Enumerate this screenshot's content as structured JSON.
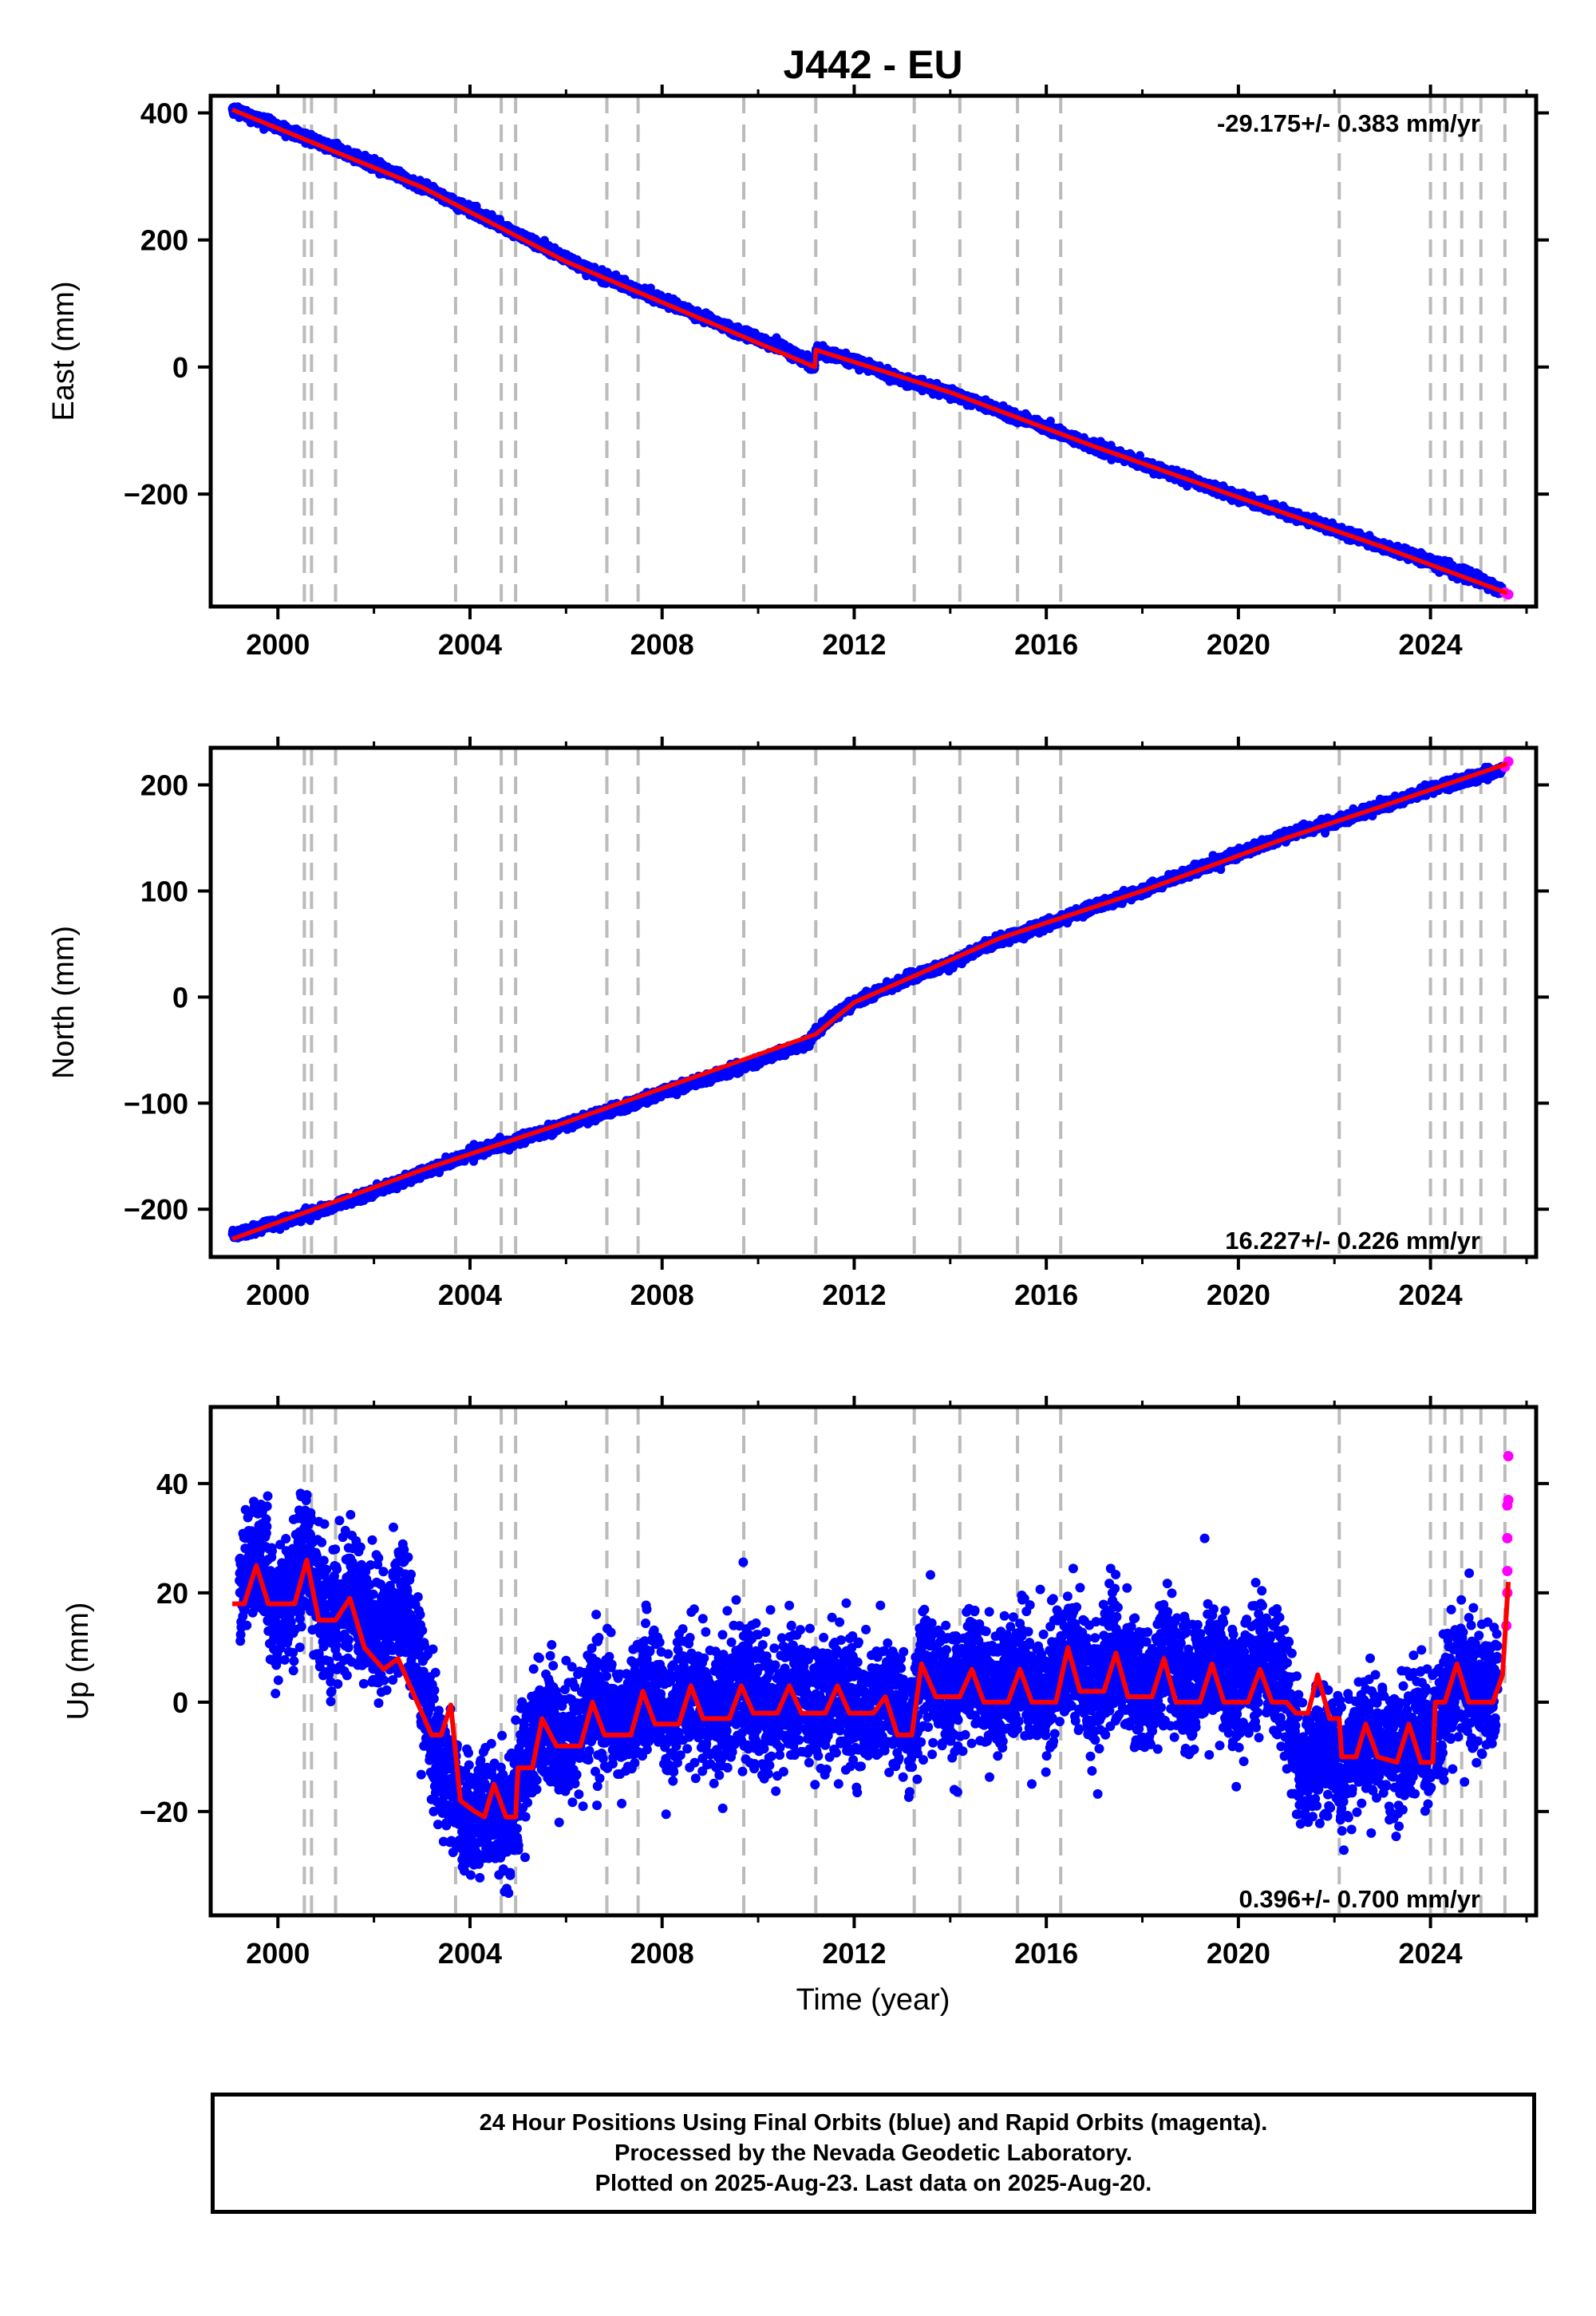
{
  "title": "J442 - EU",
  "xlabel": "Time (year)",
  "colors": {
    "final": "#0000ff",
    "rapid": "#ff00ff",
    "model": "#ff0000",
    "event_line": "#bbbbbb"
  },
  "caption": [
    "24 Hour Positions Using Final Orbits (blue) and Rapid Orbits (magenta).",
    "Processed by the Nevada Geodetic Laboratory.",
    "Plotted on 2025-Aug-23. Last data on 2025-Aug-20."
  ],
  "chart_data": [
    {
      "type": "scatter",
      "ylabel": "East (mm)",
      "rate_label": "-29.175+/- 0.383 mm/yr",
      "xlim": [
        1998.6,
        2026.2
      ],
      "ylim": [
        -377,
        427
      ],
      "xticks": [
        "2000",
        "2004",
        "2008",
        "2012",
        "2016",
        "2020",
        "2024"
      ],
      "yticks": [
        "400",
        "200",
        "0",
        "−200"
      ],
      "event_lines": [
        2000.55,
        2000.7,
        2001.2,
        2003.7,
        2004.65,
        2004.95,
        2006.85,
        2007.5,
        2009.7,
        2011.2,
        2013.25,
        2014.2,
        2015.4,
        2016.3,
        2022.1,
        2024.0,
        2024.3,
        2024.65,
        2025.05,
        2025.55
      ],
      "trend_points": [
        [
          1999.05,
          405
        ],
        [
          2003.0,
          283
        ],
        [
          2006.0,
          166
        ],
        [
          2011.18,
          0
        ],
        [
          2011.2,
          27
        ],
        [
          2014.0,
          -40
        ],
        [
          2017.0,
          -125
        ],
        [
          2020.0,
          -205
        ],
        [
          2023.0,
          -283
        ],
        [
          2025.6,
          -356
        ]
      ],
      "series": [
        {
          "name": "Final Orbits",
          "points": [
            [
              1999.05,
              406
            ],
            [
              2000.0,
              378
            ],
            [
              2001.0,
              349
            ],
            [
              2002.0,
              318
            ],
            [
              2003.0,
              284
            ],
            [
              2004.0,
              248
            ],
            [
              2004.7,
              220
            ],
            [
              2005.5,
              190
            ],
            [
              2006.5,
              152
            ],
            [
              2007.5,
              120
            ],
            [
              2008.5,
              90
            ],
            [
              2009.5,
              58
            ],
            [
              2010.5,
              30
            ],
            [
              2011.18,
              1
            ],
            [
              2011.2,
              26
            ],
            [
              2012.0,
              10
            ],
            [
              2013.0,
              -20
            ],
            [
              2014.0,
              -40
            ],
            [
              2015.0,
              -68
            ],
            [
              2016.0,
              -96
            ],
            [
              2017.0,
              -126
            ],
            [
              2018.0,
              -152
            ],
            [
              2019.0,
              -178
            ],
            [
              2020.0,
              -204
            ],
            [
              2021.0,
              -230
            ],
            [
              2022.0,
              -255
            ],
            [
              2023.0,
              -283
            ],
            [
              2024.0,
              -306
            ],
            [
              2025.0,
              -333
            ],
            [
              2025.5,
              -352
            ]
          ]
        },
        {
          "name": "Rapid Orbits",
          "points": [
            [
              2025.55,
              -355
            ],
            [
              2025.62,
              -358
            ]
          ]
        }
      ]
    },
    {
      "type": "scatter",
      "ylabel": "North (mm)",
      "rate_label": "16.227+/- 0.226 mm/yr",
      "xlim": [
        1998.6,
        2026.2
      ],
      "ylim": [
        -245,
        235
      ],
      "xticks": [
        "2000",
        "2004",
        "2008",
        "2012",
        "2016",
        "2020",
        "2024"
      ],
      "yticks": [
        "200",
        "100",
        "0",
        "−100",
        "−200"
      ],
      "event_lines": [
        2000.55,
        2000.7,
        2001.2,
        2003.7,
        2004.65,
        2004.95,
        2006.85,
        2007.5,
        2009.7,
        2011.2,
        2013.25,
        2014.2,
        2015.4,
        2016.3,
        2022.1,
        2024.0,
        2024.3,
        2024.65,
        2025.05,
        2025.55
      ],
      "trend_points": [
        [
          1999.05,
          -228
        ],
        [
          2003.0,
          -163
        ],
        [
          2006.0,
          -118
        ],
        [
          2011.2,
          -35
        ],
        [
          2012.0,
          -5
        ],
        [
          2015.0,
          55
        ],
        [
          2018.0,
          100
        ],
        [
          2021.0,
          150
        ],
        [
          2023.0,
          180
        ],
        [
          2025.6,
          220
        ]
      ],
      "series": [
        {
          "name": "Final Orbits",
          "points": [
            [
              1999.05,
              -225
            ],
            [
              2000.0,
              -212
            ],
            [
              2001.0,
              -200
            ],
            [
              2002.0,
              -184
            ],
            [
              2003.0,
              -166
            ],
            [
              2004.0,
              -148
            ],
            [
              2005.0,
              -135
            ],
            [
              2006.0,
              -120
            ],
            [
              2007.0,
              -106
            ],
            [
              2008.0,
              -90
            ],
            [
              2009.0,
              -76
            ],
            [
              2010.0,
              -60
            ],
            [
              2011.0,
              -44
            ],
            [
              2011.5,
              -20
            ],
            [
              2012.0,
              -5
            ],
            [
              2013.0,
              15
            ],
            [
              2014.0,
              32
            ],
            [
              2015.0,
              53
            ],
            [
              2016.0,
              68
            ],
            [
              2017.0,
              85
            ],
            [
              2018.0,
              100
            ],
            [
              2019.0,
              118
            ],
            [
              2020.0,
              135
            ],
            [
              2021.0,
              152
            ],
            [
              2022.0,
              165
            ],
            [
              2023.0,
              180
            ],
            [
              2024.0,
              196
            ],
            [
              2025.0,
              208
            ],
            [
              2025.5,
              215
            ]
          ]
        },
        {
          "name": "Rapid Orbits",
          "points": [
            [
              2025.55,
              217
            ],
            [
              2025.62,
              222
            ]
          ]
        }
      ]
    },
    {
      "type": "scatter",
      "ylabel": "Up (mm)",
      "rate_label": "0.396+/- 0.700 mm/yr",
      "xlim": [
        1998.6,
        2026.2
      ],
      "ylim": [
        -39,
        54
      ],
      "xticks": [
        "2000",
        "2004",
        "2008",
        "2012",
        "2016",
        "2020",
        "2024"
      ],
      "yticks": [
        "40",
        "20",
        "0",
        "−20"
      ],
      "event_lines": [
        2000.55,
        2000.7,
        2001.2,
        2003.7,
        2004.65,
        2004.95,
        2006.85,
        2007.5,
        2009.7,
        2011.2,
        2013.25,
        2014.2,
        2015.4,
        2016.3,
        2022.1,
        2024.0,
        2024.3,
        2024.65,
        2025.05,
        2025.55
      ],
      "trend_points": [
        [
          1999.05,
          18
        ],
        [
          1999.3,
          18
        ],
        [
          1999.55,
          25
        ],
        [
          1999.8,
          18
        ],
        [
          2000.1,
          18
        ],
        [
          2000.35,
          18
        ],
        [
          2000.6,
          26
        ],
        [
          2000.85,
          15
        ],
        [
          2001.2,
          15
        ],
        [
          2001.5,
          19
        ],
        [
          2001.8,
          10
        ],
        [
          2002.2,
          6
        ],
        [
          2002.5,
          8
        ],
        [
          2002.8,
          2
        ],
        [
          2003.0,
          -2
        ],
        [
          2003.2,
          -6
        ],
        [
          2003.4,
          -6
        ],
        [
          2003.6,
          -0.5
        ],
        [
          2003.8,
          -18
        ],
        [
          2004.1,
          -20
        ],
        [
          2004.3,
          -21
        ],
        [
          2004.5,
          -15
        ],
        [
          2004.75,
          -21
        ],
        [
          2004.95,
          -21
        ],
        [
          2005.0,
          -12
        ],
        [
          2005.3,
          -12
        ],
        [
          2005.5,
          -3
        ],
        [
          2005.8,
          -8
        ],
        [
          2006.3,
          -8
        ],
        [
          2006.55,
          0
        ],
        [
          2006.8,
          -6
        ],
        [
          2007.35,
          -6
        ],
        [
          2007.6,
          2
        ],
        [
          2007.85,
          -4
        ],
        [
          2008.35,
          -4
        ],
        [
          2008.6,
          3
        ],
        [
          2008.85,
          -3
        ],
        [
          2009.4,
          -3
        ],
        [
          2009.65,
          3
        ],
        [
          2009.9,
          -2
        ],
        [
          2010.4,
          -2
        ],
        [
          2010.65,
          3
        ],
        [
          2010.9,
          -2
        ],
        [
          2011.4,
          -2
        ],
        [
          2011.65,
          3
        ],
        [
          2011.9,
          -2
        ],
        [
          2012.4,
          -2
        ],
        [
          2012.65,
          1
        ],
        [
          2012.9,
          -6
        ],
        [
          2013.2,
          -6
        ],
        [
          2013.4,
          7
        ],
        [
          2013.7,
          1
        ],
        [
          2014.2,
          1
        ],
        [
          2014.45,
          6
        ],
        [
          2014.7,
          0
        ],
        [
          2015.2,
          0
        ],
        [
          2015.45,
          6
        ],
        [
          2015.7,
          0
        ],
        [
          2016.2,
          0
        ],
        [
          2016.45,
          10
        ],
        [
          2016.7,
          2
        ],
        [
          2017.2,
          2
        ],
        [
          2017.45,
          9
        ],
        [
          2017.7,
          1
        ],
        [
          2018.2,
          1
        ],
        [
          2018.45,
          8
        ],
        [
          2018.7,
          0
        ],
        [
          2019.2,
          0
        ],
        [
          2019.45,
          7
        ],
        [
          2019.7,
          0
        ],
        [
          2020.2,
          0
        ],
        [
          2020.45,
          6
        ],
        [
          2020.7,
          0
        ],
        [
          2021.0,
          0
        ],
        [
          2021.2,
          -2
        ],
        [
          2021.45,
          -2
        ],
        [
          2021.65,
          5
        ],
        [
          2021.9,
          -3
        ],
        [
          2022.1,
          -3
        ],
        [
          2022.15,
          -10
        ],
        [
          2022.45,
          -10
        ],
        [
          2022.65,
          -4
        ],
        [
          2022.9,
          -10
        ],
        [
          2023.3,
          -11
        ],
        [
          2023.55,
          -4
        ],
        [
          2023.8,
          -11
        ],
        [
          2024.05,
          -11
        ],
        [
          2024.1,
          0
        ],
        [
          2024.3,
          0
        ],
        [
          2024.55,
          7
        ],
        [
          2024.8,
          0
        ],
        [
          2025.0,
          0
        ],
        [
          2025.3,
          0
        ],
        [
          2025.5,
          5
        ],
        [
          2025.62,
          22
        ]
      ],
      "series": [
        {
          "name": "Final Orbits",
          "points": [
            [
              1999.2,
              21
            ],
            [
              1999.6,
              27
            ],
            [
              2000.0,
              15
            ],
            [
              2000.6,
              28
            ],
            [
              2001.0,
              14
            ],
            [
              2001.5,
              20
            ],
            [
              2002.0,
              12
            ],
            [
              2002.6,
              18
            ],
            [
              2003.2,
              -5
            ],
            [
              2003.8,
              -21
            ],
            [
              2004.3,
              -20
            ],
            [
              2004.8,
              -22
            ],
            [
              2005.2,
              -10
            ],
            [
              2005.5,
              -3
            ],
            [
              2006.0,
              -8
            ],
            [
              2006.6,
              1
            ],
            [
              2007.2,
              -6
            ],
            [
              2007.6,
              2
            ],
            [
              2008.2,
              -3
            ],
            [
              2008.6,
              3
            ],
            [
              2009.2,
              -3
            ],
            [
              2009.7,
              4
            ],
            [
              2010.3,
              -2
            ],
            [
              2010.7,
              3
            ],
            [
              2011.3,
              -2
            ],
            [
              2011.7,
              3
            ],
            [
              2012.3,
              -2
            ],
            [
              2012.7,
              1
            ],
            [
              2013.2,
              -5
            ],
            [
              2013.4,
              6
            ],
            [
              2014.0,
              1
            ],
            [
              2014.5,
              6
            ],
            [
              2015.0,
              0
            ],
            [
              2015.5,
              6
            ],
            [
              2016.0,
              0
            ],
            [
              2016.5,
              9
            ],
            [
              2017.0,
              2
            ],
            [
              2017.5,
              9
            ],
            [
              2018.0,
              1
            ],
            [
              2018.5,
              8
            ],
            [
              2019.0,
              2
            ],
            [
              2019.5,
              7
            ],
            [
              2020.0,
              2
            ],
            [
              2020.5,
              8
            ],
            [
              2021.0,
              2
            ],
            [
              2021.3,
              -13
            ],
            [
              2021.7,
              -8
            ],
            [
              2022.2,
              -11
            ],
            [
              2022.7,
              -5
            ],
            [
              2023.2,
              -10
            ],
            [
              2023.6,
              -6
            ],
            [
              2024.1,
              -5
            ],
            [
              2024.6,
              6
            ],
            [
              2025.0,
              1
            ],
            [
              2025.4,
              4
            ]
          ]
        },
        {
          "name": "Rapid Orbits",
          "points": [
            [
              2025.58,
              14
            ],
            [
              2025.6,
              20
            ],
            [
              2025.6,
              24
            ],
            [
              2025.6,
              30
            ],
            [
              2025.6,
              36
            ],
            [
              2025.62,
              37
            ],
            [
              2025.62,
              45
            ]
          ]
        }
      ]
    }
  ]
}
